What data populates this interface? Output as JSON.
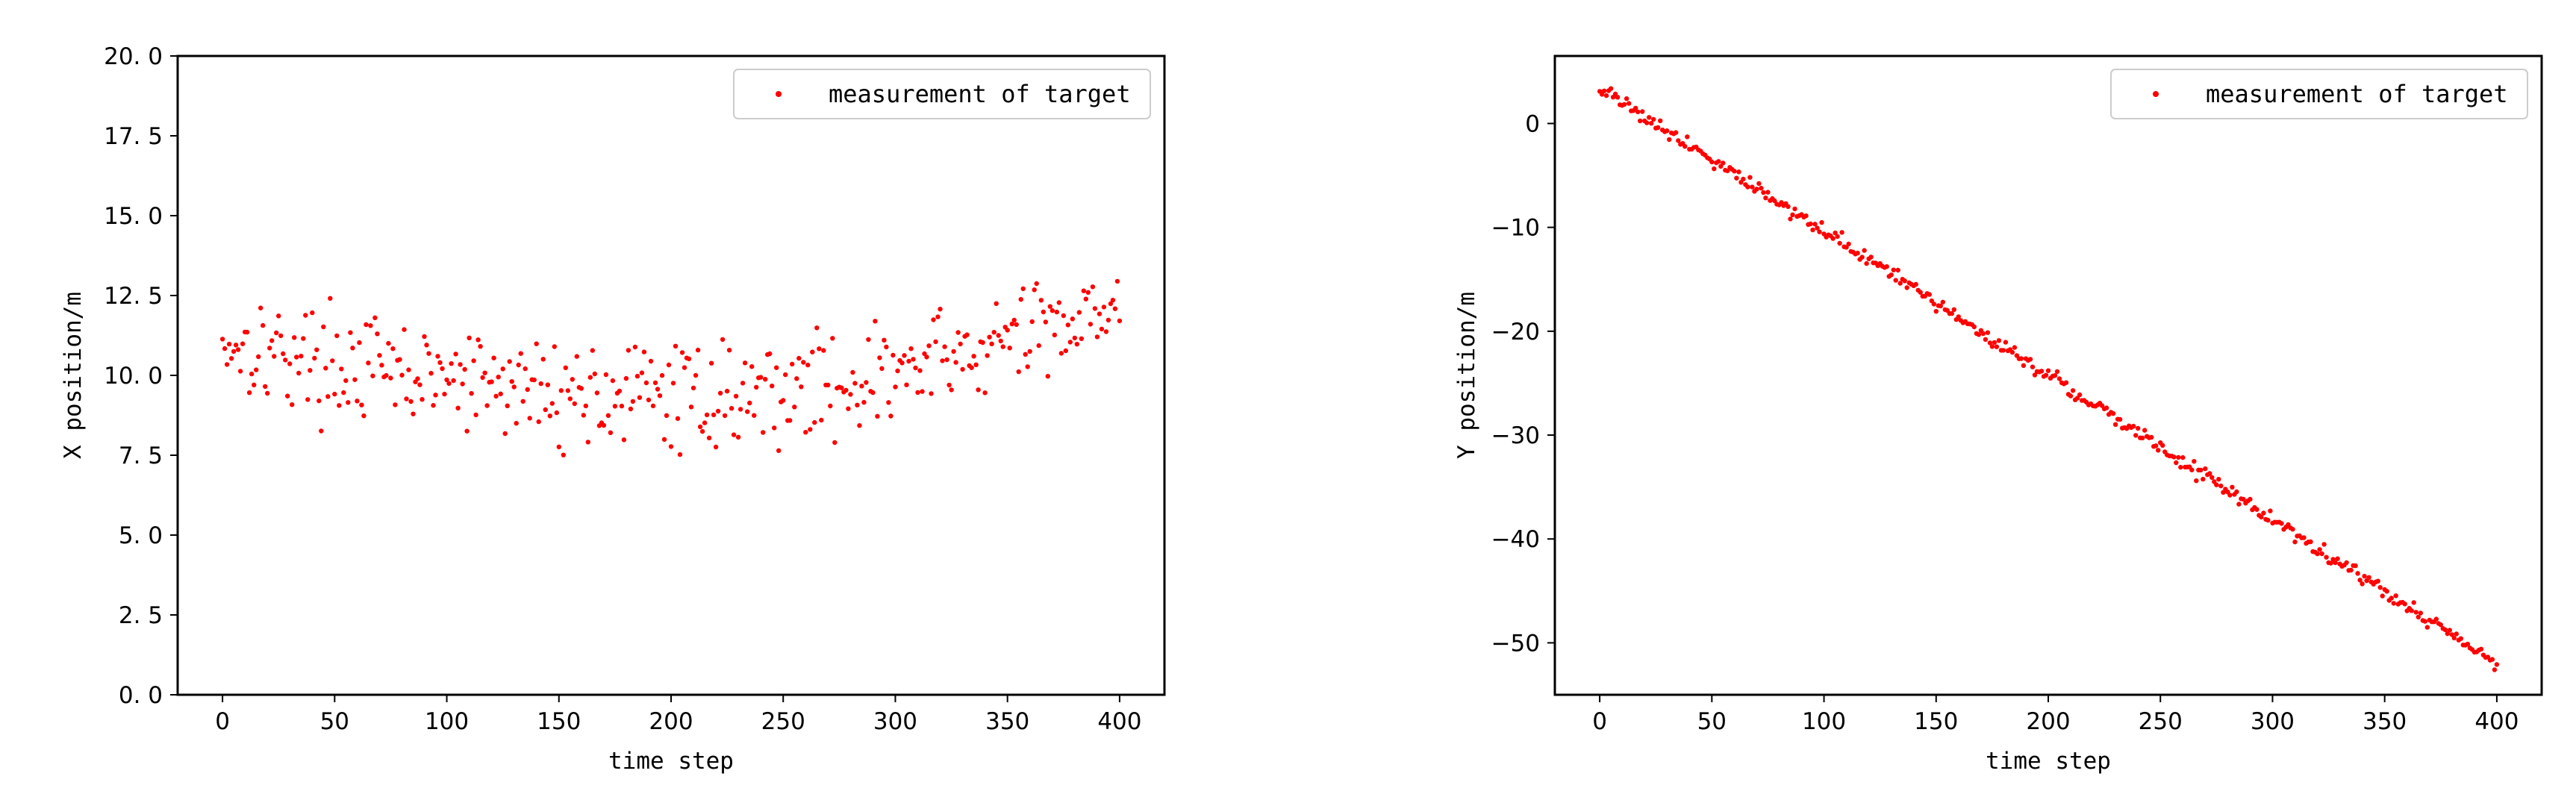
{
  "chart_data": [
    {
      "type": "scatter",
      "title": "",
      "xlabel": "time step",
      "ylabel": "X position/m",
      "xlim": [
        -20,
        420
      ],
      "ylim": [
        0,
        20
      ],
      "xticks": [
        0,
        50,
        100,
        150,
        200,
        250,
        300,
        350,
        400
      ],
      "yticks": [
        0,
        2.5,
        5,
        7.5,
        10,
        12.5,
        15,
        17.5,
        20
      ],
      "ytick_labels": [
        "0. 0",
        "2. 5",
        "5. 0",
        "7. 5",
        "10. 0",
        "12. 5",
        "15. 0",
        "17. 5",
        "20. 0"
      ],
      "legend": {
        "position": "top-right",
        "entries": [
          "measurement of target"
        ]
      },
      "grid": false,
      "color": "#ff0000",
      "series": [
        {
          "name": "measurement of target",
          "x": [
            0,
            8,
            16,
            24,
            32,
            40,
            48,
            56,
            64,
            72,
            80,
            88,
            96,
            104,
            112,
            120,
            128,
            136,
            144,
            152,
            160,
            168,
            176,
            184,
            192,
            200,
            208,
            216,
            224,
            232,
            240,
            248,
            256,
            264,
            272,
            280,
            288,
            296,
            304,
            312,
            320,
            328,
            336,
            344,
            352,
            360,
            368,
            376,
            384,
            392,
            400
          ],
          "y": [
            11.1,
            11.0,
            10.9,
            10.7,
            10.6,
            10.5,
            10.4,
            10.3,
            10.2,
            10.1,
            10.0,
            9.9,
            9.9,
            9.8,
            9.7,
            9.7,
            9.6,
            9.6,
            9.5,
            9.5,
            9.4,
            9.4,
            9.4,
            9.4,
            9.4,
            9.3,
            9.4,
            9.4,
            9.4,
            9.4,
            9.5,
            9.5,
            9.6,
            9.7,
            9.7,
            9.8,
            9.9,
            10.0,
            10.1,
            10.3,
            10.4,
            10.5,
            10.7,
            10.9,
            11.1,
            11.3,
            11.5,
            11.8,
            12.0,
            12.3,
            12.5
          ],
          "x_step": 1,
          "noise": 1.0
        }
      ]
    },
    {
      "type": "scatter",
      "title": "",
      "xlabel": "time step",
      "ylabel": "Y position/m",
      "xlim": [
        -20,
        420
      ],
      "ylim": [
        -55,
        6.5
      ],
      "xticks": [
        0,
        50,
        100,
        150,
        200,
        250,
        300,
        350,
        400
      ],
      "yticks": [
        0,
        -10,
        -20,
        -30,
        -40,
        -50
      ],
      "ytick_labels": [
        "0",
        "−10",
        "−20",
        "−30",
        "−40",
        "−50"
      ],
      "legend": {
        "position": "top-right",
        "entries": [
          "measurement of target"
        ]
      },
      "grid": false,
      "color": "#ff0000",
      "series": [
        {
          "name": "measurement of target",
          "x": [
            0,
            400
          ],
          "y": [
            3.5,
            -52
          ],
          "x_step": 1,
          "noise": 0.45
        }
      ]
    }
  ]
}
